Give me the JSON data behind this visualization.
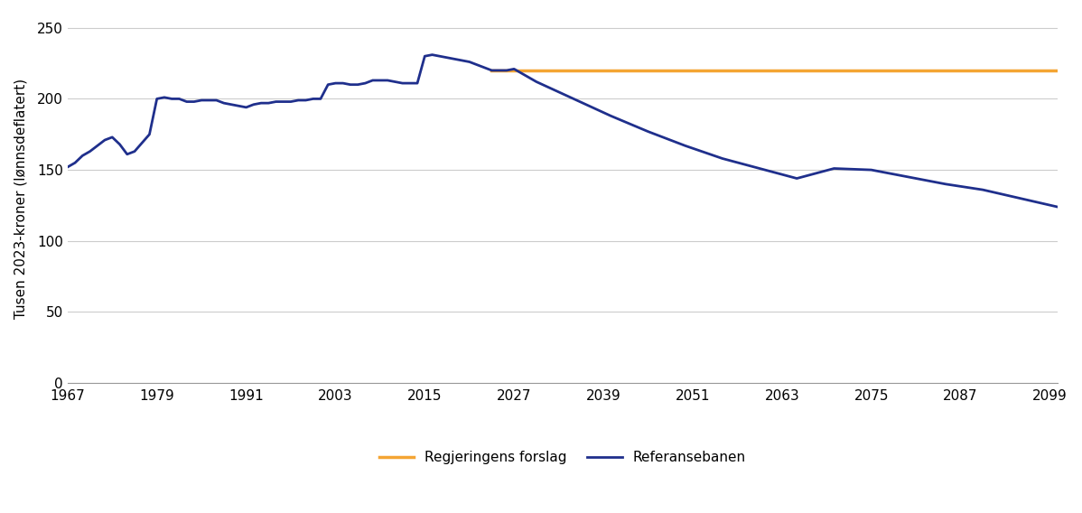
{
  "title": "",
  "ylabel": "Tusen 2023-kroner (lønnsdeflatert)",
  "xlabel": "",
  "ylim": [
    0,
    260
  ],
  "yticks": [
    0,
    50,
    100,
    150,
    200,
    250
  ],
  "xticks": [
    1967,
    1979,
    1991,
    2003,
    2015,
    2027,
    2039,
    2051,
    2063,
    2075,
    2087,
    2099
  ],
  "background_color": "#ffffff",
  "grid_color": "#cccccc",
  "legend_labels": [
    "Regjeringens forslag",
    "Referansebanen"
  ],
  "legend_colors": [
    "#f4a533",
    "#1f2f8c"
  ],
  "orange_line": {
    "x_start": 2024,
    "x_end": 2100,
    "y_value": 220
  },
  "ref_line": {
    "years": [
      1967,
      1968,
      1969,
      1970,
      1971,
      1972,
      1973,
      1974,
      1975,
      1976,
      1977,
      1978,
      1979,
      1980,
      1981,
      1982,
      1983,
      1984,
      1985,
      1986,
      1987,
      1988,
      1989,
      1990,
      1991,
      1992,
      1993,
      1994,
      1995,
      1996,
      1997,
      1998,
      1999,
      2000,
      2001,
      2002,
      2003,
      2004,
      2005,
      2006,
      2007,
      2008,
      2009,
      2010,
      2011,
      2012,
      2013,
      2014,
      2015,
      2016,
      2017,
      2018,
      2019,
      2020,
      2021,
      2022,
      2023,
      2024,
      2025,
      2026,
      2027,
      2028,
      2030,
      2035,
      2040,
      2045,
      2050,
      2055,
      2060,
      2065,
      2070,
      2075,
      2080,
      2085,
      2090,
      2095,
      2100
    ],
    "values": [
      152,
      155,
      160,
      163,
      167,
      171,
      173,
      168,
      161,
      163,
      169,
      175,
      200,
      201,
      200,
      200,
      198,
      198,
      199,
      199,
      199,
      197,
      196,
      195,
      194,
      196,
      197,
      197,
      198,
      198,
      198,
      199,
      199,
      200,
      200,
      210,
      211,
      211,
      210,
      210,
      211,
      213,
      213,
      213,
      212,
      211,
      211,
      211,
      230,
      231,
      230,
      229,
      228,
      227,
      226,
      224,
      222,
      220,
      220,
      220,
      221,
      218,
      212,
      200,
      188,
      177,
      167,
      158,
      151,
      144,
      151,
      150,
      145,
      140,
      136,
      130,
      124
    ]
  }
}
